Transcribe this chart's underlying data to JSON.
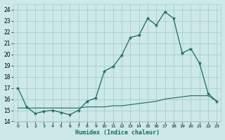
{
  "xlabel": "Humidex (Indice chaleur)",
  "background_color": "#cce8e8",
  "grid_color": "#aacccc",
  "line_color": "#1a6b5e",
  "xlim": [
    -0.5,
    23.5
  ],
  "ylim": [
    14,
    24.5
  ],
  "yticks": [
    14,
    15,
    16,
    17,
    18,
    19,
    20,
    21,
    22,
    23,
    24
  ],
  "xticks": [
    0,
    1,
    2,
    3,
    4,
    5,
    6,
    7,
    8,
    9,
    10,
    11,
    12,
    13,
    14,
    15,
    16,
    17,
    18,
    19,
    20,
    21,
    22,
    23
  ],
  "line1_x": [
    0,
    1,
    2,
    3,
    4,
    5,
    6,
    7,
    8,
    9,
    10,
    11,
    12,
    13,
    14,
    15,
    16,
    17,
    18,
    19,
    20,
    21,
    22,
    23
  ],
  "line1_y": [
    17.0,
    15.3,
    14.7,
    14.9,
    15.0,
    14.8,
    14.6,
    15.0,
    15.8,
    16.1,
    18.5,
    18.9,
    19.9,
    21.5,
    21.7,
    23.2,
    22.6,
    23.8,
    23.2,
    20.1,
    20.5,
    19.2,
    16.5,
    15.8
  ],
  "line2_x": [
    0,
    1,
    2,
    3,
    4,
    5,
    6,
    7,
    8,
    9,
    10,
    11,
    12,
    13,
    14,
    15,
    16,
    17,
    18,
    19,
    20,
    21,
    22,
    23
  ],
  "line2_y": [
    15.2,
    15.2,
    15.2,
    15.2,
    15.2,
    15.2,
    15.2,
    15.2,
    15.3,
    15.3,
    15.3,
    15.4,
    15.4,
    15.5,
    15.6,
    15.7,
    15.8,
    16.0,
    16.1,
    16.2,
    16.3,
    16.3,
    16.3,
    15.8
  ]
}
